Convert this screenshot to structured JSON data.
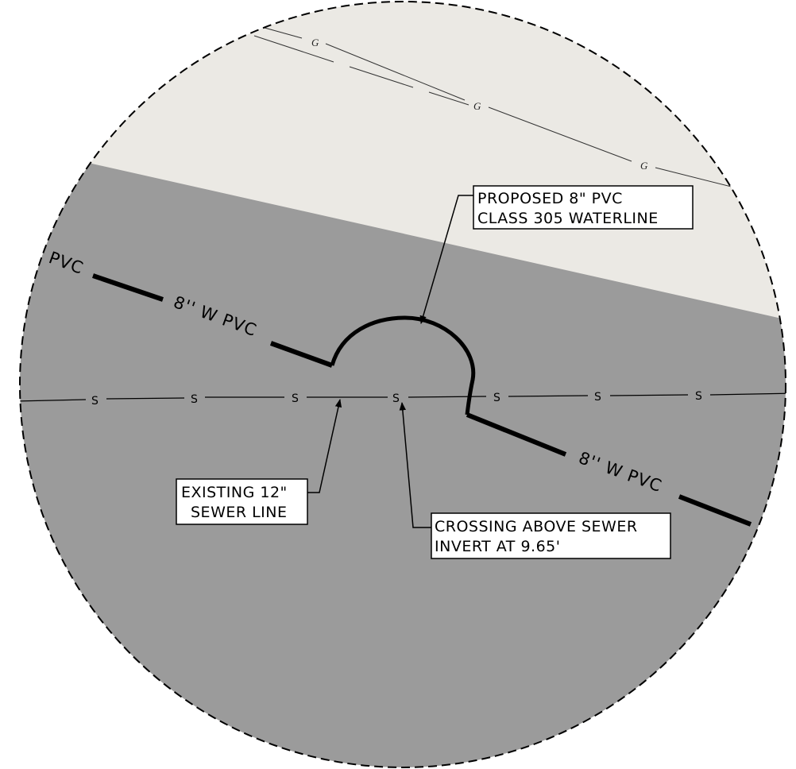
{
  "detail": {
    "colors": {
      "paper": "#ffffff",
      "gray_area": "#9b9b9b",
      "light_area": "#ebe9e4",
      "linework": "#000000"
    },
    "gas_line": {
      "symbol": "G",
      "symbols": [
        "G",
        "G",
        "G"
      ]
    },
    "sewer_line": {
      "symbol": "S",
      "symbols": [
        "S",
        "S",
        "S",
        "S",
        "S",
        "S",
        "S"
      ]
    },
    "waterline": {
      "left_end_label": "PVC",
      "left_label": "8'' W PVC",
      "right_label": "8'' W PVC"
    },
    "callouts": {
      "proposed": {
        "line1": "PROPOSED 8\" PVC",
        "line2": "CLASS 305 WATERLINE"
      },
      "existing": {
        "line1": "EXISTING 12\"",
        "line2": "SEWER LINE"
      },
      "crossing": {
        "line1": "CROSSING ABOVE SEWER",
        "line2": "INVERT AT 9.65'"
      }
    }
  }
}
